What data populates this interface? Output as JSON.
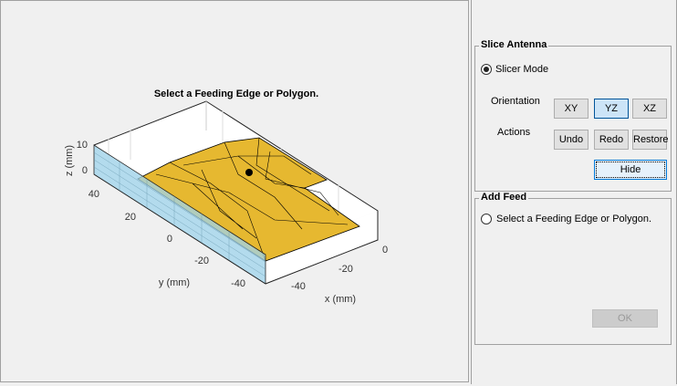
{
  "plot": {
    "title": "Select a Feeding Edge or Polygon.",
    "xlabel": "x (mm)",
    "ylabel": "y (mm)",
    "zlabel": "z (mm)",
    "x_ticks": [
      "0",
      "-20",
      "-40"
    ],
    "y_ticks": [
      "40",
      "20",
      "0",
      "-20",
      "-40"
    ],
    "z_ticks": [
      "10",
      "0"
    ],
    "colors": {
      "metal": "#e6b830",
      "substrate": "#9fd4ec"
    }
  },
  "slice": {
    "title": "Slice Antenna",
    "mode_label": "Slicer Mode",
    "mode_selected": true,
    "orientation_label": "Orientation",
    "actions_label": "Actions",
    "orientation": [
      "XY",
      "YZ",
      "XZ"
    ],
    "orientation_selected": "YZ",
    "undo": "Undo",
    "redo": "Redo",
    "restore": "Restore",
    "hide": "Hide"
  },
  "feed": {
    "title": "Add Feed",
    "option_label": "Select a Feeding Edge or Polygon.",
    "option_selected": false,
    "ok": "OK"
  }
}
